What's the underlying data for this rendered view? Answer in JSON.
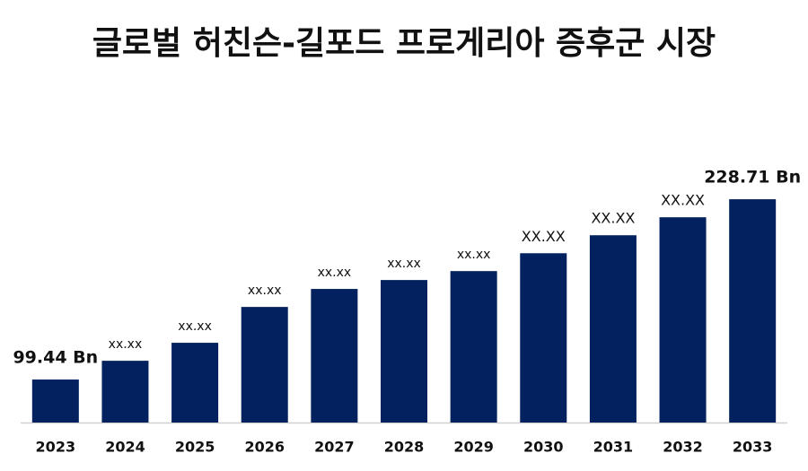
{
  "chart_data": {
    "type": "bar",
    "title": "글로벌 허친슨-길포드 프로게리아 증후군 시장",
    "categories": [
      "2023",
      "2024",
      "2025",
      "2026",
      "2027",
      "2028",
      "2029",
      "2030",
      "2031",
      "2032",
      "2033"
    ],
    "values": [
      99.44,
      112.9,
      125.8,
      151.5,
      164.4,
      170.8,
      177.2,
      190.0,
      202.9,
      215.8,
      228.71
    ],
    "value_labels": [
      "99.44 Bn",
      "xx.xx",
      "xx.xx",
      "xx.xx",
      "xx.xx",
      "xx.xx",
      "xx.xx",
      "XX.XX",
      "XX.XX",
      "XX.XX",
      "228.71 Bn"
    ],
    "color": "#03215e",
    "ylim": [
      68.6,
      250
    ]
  }
}
